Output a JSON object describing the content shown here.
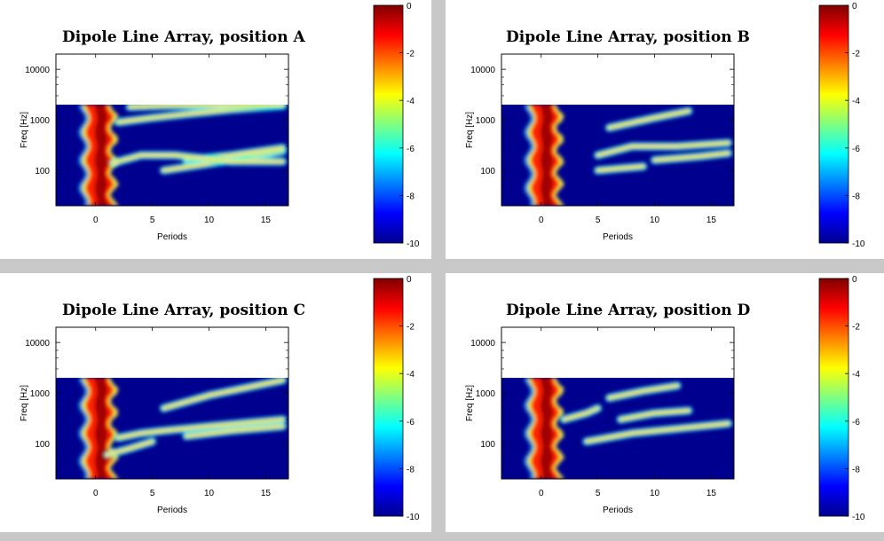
{
  "colors": {
    "background": "#c8c8c8",
    "panel": "#ffffff",
    "colormap": [
      "#00008f",
      "#0000ff",
      "#0080ff",
      "#00ffff",
      "#80ff80",
      "#ffff00",
      "#ff8000",
      "#ff0000",
      "#800000"
    ]
  },
  "chart_data": [
    {
      "type": "heatmap",
      "title": "Dipole Line Array, position A",
      "xlabel": "Periods",
      "ylabel": "Freq [Hz]",
      "xlim": [
        -3.5,
        17
      ],
      "ylim": [
        20,
        20000
      ],
      "yscale": "log",
      "data_freq_range": [
        20,
        2000
      ],
      "x_ticks": [
        "0",
        "5",
        "10",
        "15"
      ],
      "y_ticks": [
        "100",
        "1000",
        "10000"
      ],
      "colorbar": {
        "range": [
          -10,
          0
        ],
        "ticks": [
          "0",
          "-2",
          "-4",
          "-6",
          "-8",
          "-10"
        ]
      },
      "ridges": [
        {
          "x": [
            6,
            12,
            16.5
          ],
          "freq": [
            100,
            160,
            240
          ]
        },
        {
          "x": [
            8,
            12,
            16.5
          ],
          "freq": [
            160,
            200,
            280
          ]
        },
        {
          "x": [
            1.5,
            4,
            7,
            12,
            16.5
          ],
          "freq": [
            140,
            200,
            200,
            150,
            150
          ]
        },
        {
          "x": [
            2,
            5,
            8,
            12,
            16.5
          ],
          "freq": [
            900,
            1100,
            1300,
            1600,
            1900
          ]
        },
        {
          "x": [
            3,
            6,
            10,
            16.5
          ],
          "freq": [
            1800,
            1900,
            1950,
            2000
          ]
        }
      ]
    },
    {
      "type": "heatmap",
      "title": "Dipole Line Array, position B",
      "xlabel": "Periods",
      "ylabel": "Freq [Hz]",
      "xlim": [
        -3.5,
        17
      ],
      "ylim": [
        20,
        20000
      ],
      "yscale": "log",
      "data_freq_range": [
        20,
        2000
      ],
      "x_ticks": [
        "0",
        "5",
        "10",
        "15"
      ],
      "y_ticks": [
        "100",
        "1000",
        "10000"
      ],
      "colorbar": {
        "range": [
          -10,
          0
        ],
        "ticks": [
          "0",
          "-2",
          "-4",
          "-6",
          "-8",
          "-10"
        ]
      },
      "ridges": [
        {
          "x": [
            5,
            8,
            12,
            16.5
          ],
          "freq": [
            200,
            300,
            300,
            350
          ]
        },
        {
          "x": [
            5,
            7,
            9
          ],
          "freq": [
            100,
            110,
            120
          ]
        },
        {
          "x": [
            6,
            10,
            13
          ],
          "freq": [
            700,
            1100,
            1500
          ]
        },
        {
          "x": [
            10,
            14,
            16.5
          ],
          "freq": [
            160,
            190,
            220
          ]
        }
      ]
    },
    {
      "type": "heatmap",
      "title": "Dipole Line Array, position C",
      "xlabel": "Periods",
      "ylabel": "Freq [Hz]",
      "xlim": [
        -3.5,
        17
      ],
      "ylim": [
        20,
        20000
      ],
      "yscale": "log",
      "data_freq_range": [
        20,
        2000
      ],
      "x_ticks": [
        "0",
        "5",
        "10",
        "15"
      ],
      "y_ticks": [
        "100",
        "1000",
        "10000"
      ],
      "colorbar": {
        "range": [
          -10,
          0
        ],
        "ticks": [
          "0",
          "-2",
          "-4",
          "-6",
          "-8",
          "-10"
        ]
      },
      "ridges": [
        {
          "x": [
            1,
            3,
            5
          ],
          "freq": [
            60,
            80,
            110
          ]
        },
        {
          "x": [
            2,
            4,
            6,
            10,
            16.5
          ],
          "freq": [
            130,
            160,
            180,
            220,
            300
          ]
        },
        {
          "x": [
            6,
            10,
            16.5
          ],
          "freq": [
            500,
            900,
            1800
          ]
        },
        {
          "x": [
            8,
            12,
            16.5
          ],
          "freq": [
            140,
            180,
            220
          ]
        }
      ]
    },
    {
      "type": "heatmap",
      "title": "Dipole Line Array, position D",
      "xlabel": "Periods",
      "ylabel": "Freq [Hz]",
      "xlim": [
        -3.5,
        17
      ],
      "ylim": [
        20,
        20000
      ],
      "yscale": "log",
      "data_freq_range": [
        20,
        2000
      ],
      "x_ticks": [
        "0",
        "5",
        "10",
        "15"
      ],
      "y_ticks": [
        "100",
        "1000",
        "10000"
      ],
      "colorbar": {
        "range": [
          -10,
          0
        ],
        "ticks": [
          "0",
          "-2",
          "-4",
          "-6",
          "-8",
          "-10"
        ]
      },
      "ridges": [
        {
          "x": [
            2,
            4,
            5
          ],
          "freq": [
            300,
            400,
            500
          ]
        },
        {
          "x": [
            6,
            9,
            12
          ],
          "freq": [
            800,
            1100,
            1400
          ]
        },
        {
          "x": [
            7,
            10,
            13
          ],
          "freq": [
            300,
            400,
            450
          ]
        },
        {
          "x": [
            4,
            8,
            16.5
          ],
          "freq": [
            110,
            160,
            250
          ]
        }
      ]
    }
  ]
}
